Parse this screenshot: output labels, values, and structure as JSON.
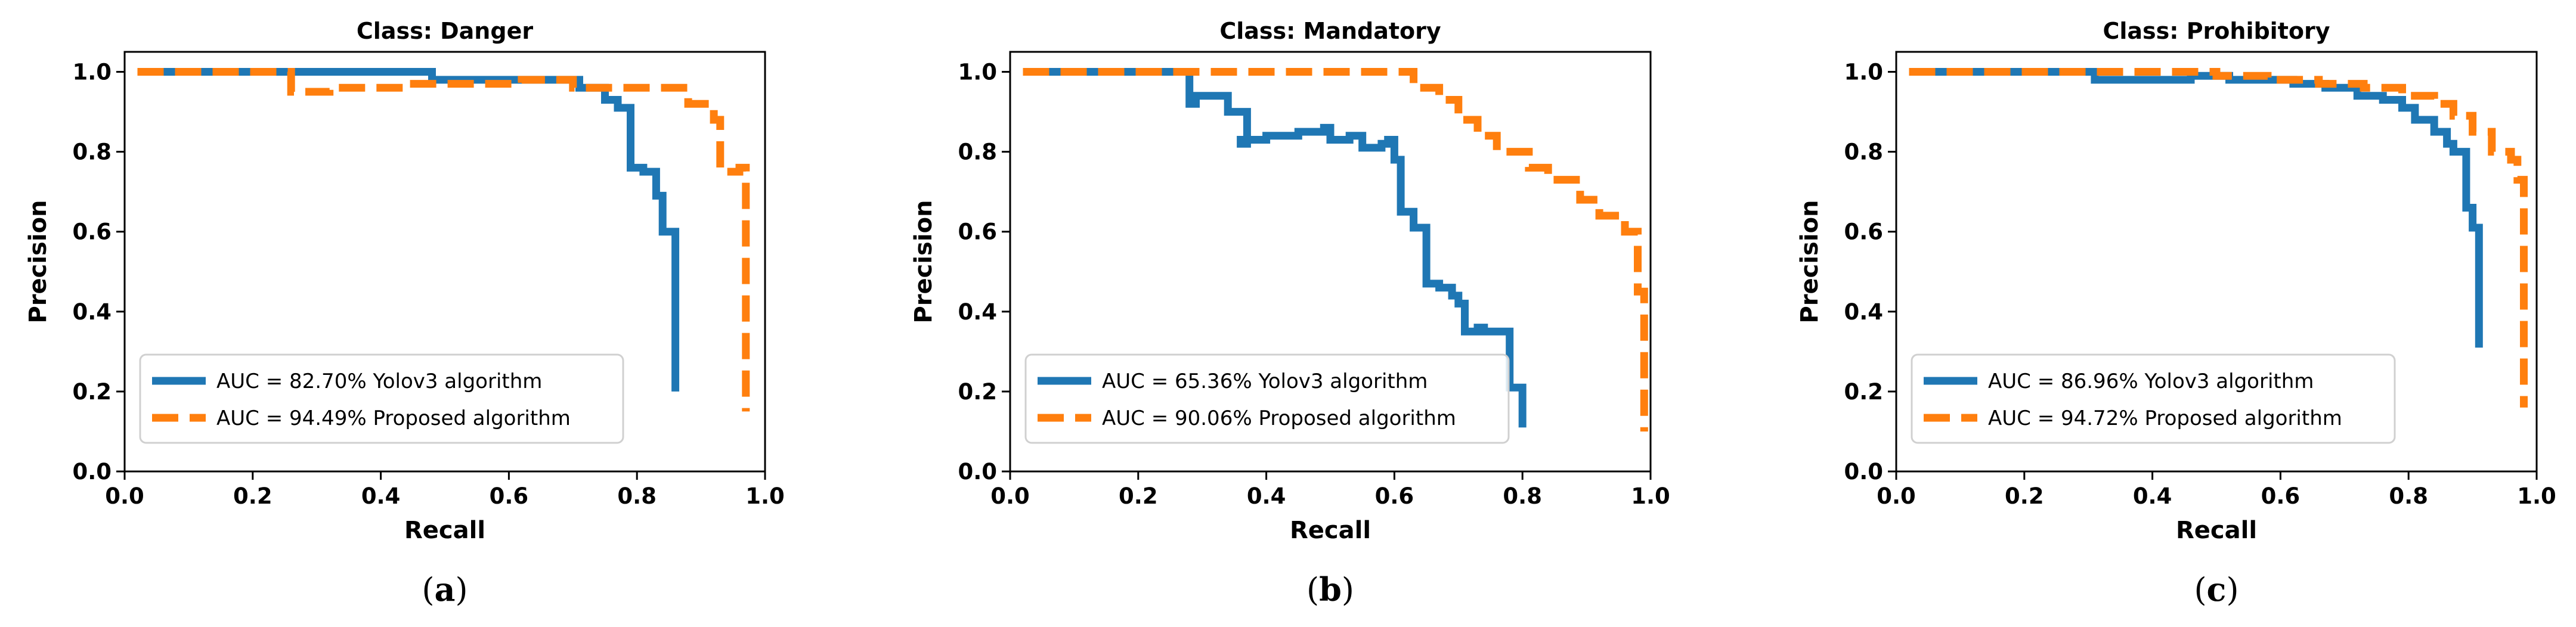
{
  "colors": {
    "yolo": "#1f77b4",
    "proposed": "#ff7f0e"
  },
  "chart_data": [
    {
      "type": "line",
      "title": "Class: Danger",
      "xlabel": "Recall",
      "ylabel": "Precision",
      "xlim": [
        0.0,
        1.0
      ],
      "ylim": [
        0.0,
        1.05
      ],
      "xticks": [
        "0.0",
        "0.2",
        "0.4",
        "0.6",
        "0.8",
        "1.0"
      ],
      "yticks": [
        "0.0",
        "0.2",
        "0.4",
        "0.6",
        "0.8",
        "1.0"
      ],
      "caption": {
        "open": "(",
        "letter": "a",
        "close": ")"
      },
      "legend_position": "lower-left",
      "series": [
        {
          "name": "AUC = 82.70% Yolov3 algorithm",
          "style": "solid",
          "color_key": "yolo",
          "x": [
            0.02,
            0.48,
            0.48,
            0.71,
            0.71,
            0.75,
            0.75,
            0.77,
            0.77,
            0.79,
            0.79,
            0.81,
            0.81,
            0.83,
            0.83,
            0.84,
            0.84,
            0.86,
            0.86
          ],
          "y": [
            1.0,
            1.0,
            0.98,
            0.98,
            0.96,
            0.96,
            0.93,
            0.93,
            0.91,
            0.91,
            0.76,
            0.76,
            0.75,
            0.75,
            0.69,
            0.69,
            0.6,
            0.6,
            0.2
          ]
        },
        {
          "name": "AUC = 94.49% Proposed algorithm",
          "style": "dashed",
          "color_key": "proposed",
          "x": [
            0.02,
            0.26,
            0.26,
            0.32,
            0.32,
            0.44,
            0.44,
            0.62,
            0.62,
            0.7,
            0.7,
            0.88,
            0.88,
            0.92,
            0.92,
            0.93,
            0.93,
            0.96,
            0.96,
            0.97,
            0.97
          ],
          "y": [
            1.0,
            1.0,
            0.95,
            0.95,
            0.96,
            0.96,
            0.97,
            0.97,
            0.98,
            0.98,
            0.96,
            0.96,
            0.92,
            0.92,
            0.88,
            0.88,
            0.75,
            0.75,
            0.76,
            0.76,
            0.15
          ]
        }
      ]
    },
    {
      "type": "line",
      "title": "Class: Mandatory",
      "xlabel": "Recall",
      "ylabel": "Precision",
      "xlim": [
        0.0,
        1.0
      ],
      "ylim": [
        0.0,
        1.05
      ],
      "xticks": [
        "0.0",
        "0.2",
        "0.4",
        "0.6",
        "0.8",
        "1.0"
      ],
      "yticks": [
        "0.0",
        "0.2",
        "0.4",
        "0.6",
        "0.8",
        "1.0"
      ],
      "caption": {
        "open": "(",
        "letter": "b",
        "close": ")"
      },
      "legend_position": "lower-left",
      "series": [
        {
          "name": "AUC = 65.36% Yolov3 algorithm",
          "style": "solid",
          "color_key": "yolo",
          "x": [
            0.02,
            0.28,
            0.28,
            0.29,
            0.29,
            0.34,
            0.34,
            0.37,
            0.37,
            0.36,
            0.36,
            0.4,
            0.4,
            0.45,
            0.45,
            0.49,
            0.49,
            0.5,
            0.5,
            0.53,
            0.53,
            0.55,
            0.55,
            0.58,
            0.58,
            0.59,
            0.59,
            0.6,
            0.6,
            0.61,
            0.61,
            0.63,
            0.63,
            0.65,
            0.65,
            0.67,
            0.67,
            0.69,
            0.69,
            0.7,
            0.7,
            0.71,
            0.71,
            0.73,
            0.73,
            0.74,
            0.74,
            0.78,
            0.78,
            0.8,
            0.8
          ],
          "y": [
            1.0,
            1.0,
            0.92,
            0.92,
            0.94,
            0.94,
            0.9,
            0.9,
            0.82,
            0.82,
            0.83,
            0.83,
            0.84,
            0.84,
            0.85,
            0.85,
            0.86,
            0.86,
            0.83,
            0.83,
            0.84,
            0.84,
            0.81,
            0.81,
            0.82,
            0.82,
            0.83,
            0.83,
            0.78,
            0.78,
            0.65,
            0.65,
            0.61,
            0.61,
            0.47,
            0.47,
            0.46,
            0.46,
            0.44,
            0.44,
            0.42,
            0.42,
            0.35,
            0.35,
            0.36,
            0.36,
            0.35,
            0.35,
            0.21,
            0.21,
            0.11
          ]
        },
        {
          "name": "AUC = 90.06% Proposed algorithm",
          "style": "dashed",
          "color_key": "proposed",
          "x": [
            0.02,
            0.63,
            0.63,
            0.67,
            0.67,
            0.7,
            0.7,
            0.73,
            0.73,
            0.76,
            0.76,
            0.81,
            0.81,
            0.84,
            0.84,
            0.89,
            0.89,
            0.92,
            0.92,
            0.96,
            0.96,
            0.98,
            0.98,
            0.99,
            0.99
          ],
          "y": [
            1.0,
            1.0,
            0.96,
            0.96,
            0.93,
            0.93,
            0.88,
            0.88,
            0.84,
            0.84,
            0.8,
            0.8,
            0.76,
            0.76,
            0.73,
            0.73,
            0.68,
            0.68,
            0.64,
            0.64,
            0.6,
            0.6,
            0.45,
            0.45,
            0.1
          ]
        }
      ]
    },
    {
      "type": "line",
      "title": "Class: Prohibitory",
      "xlabel": "Recall",
      "ylabel": "Precision",
      "xlim": [
        0.0,
        1.0
      ],
      "ylim": [
        0.0,
        1.05
      ],
      "xticks": [
        "0.0",
        "0.2",
        "0.4",
        "0.6",
        "0.8",
        "1.0"
      ],
      "yticks": [
        "0.0",
        "0.2",
        "0.4",
        "0.6",
        "0.8",
        "1.0"
      ],
      "caption": {
        "open": "(",
        "letter": "c",
        "close": ")"
      },
      "legend_position": "lower-left",
      "series": [
        {
          "name": "AUC = 86.96% Yolov3 algorithm",
          "style": "solid",
          "color_key": "yolo",
          "x": [
            0.02,
            0.31,
            0.31,
            0.46,
            0.46,
            0.52,
            0.52,
            0.62,
            0.62,
            0.67,
            0.67,
            0.72,
            0.72,
            0.76,
            0.76,
            0.79,
            0.79,
            0.81,
            0.81,
            0.84,
            0.84,
            0.86,
            0.86,
            0.87,
            0.87,
            0.89,
            0.89,
            0.9,
            0.9,
            0.91,
            0.91
          ],
          "y": [
            1.0,
            1.0,
            0.98,
            0.98,
            0.99,
            0.99,
            0.98,
            0.98,
            0.97,
            0.97,
            0.96,
            0.96,
            0.94,
            0.94,
            0.93,
            0.93,
            0.91,
            0.91,
            0.88,
            0.88,
            0.85,
            0.85,
            0.82,
            0.82,
            0.8,
            0.8,
            0.66,
            0.66,
            0.61,
            0.61,
            0.31
          ]
        },
        {
          "name": "AUC = 94.72% Proposed algorithm",
          "style": "dashed",
          "color_key": "proposed",
          "x": [
            0.02,
            0.5,
            0.5,
            0.58,
            0.58,
            0.66,
            0.66,
            0.73,
            0.73,
            0.79,
            0.79,
            0.84,
            0.84,
            0.87,
            0.87,
            0.9,
            0.9,
            0.93,
            0.93,
            0.96,
            0.96,
            0.97,
            0.97,
            0.98,
            0.98
          ],
          "y": [
            1.0,
            1.0,
            0.99,
            0.99,
            0.98,
            0.98,
            0.97,
            0.97,
            0.96,
            0.96,
            0.94,
            0.94,
            0.92,
            0.92,
            0.89,
            0.89,
            0.85,
            0.85,
            0.8,
            0.8,
            0.78,
            0.78,
            0.73,
            0.73,
            0.16
          ]
        }
      ]
    }
  ]
}
